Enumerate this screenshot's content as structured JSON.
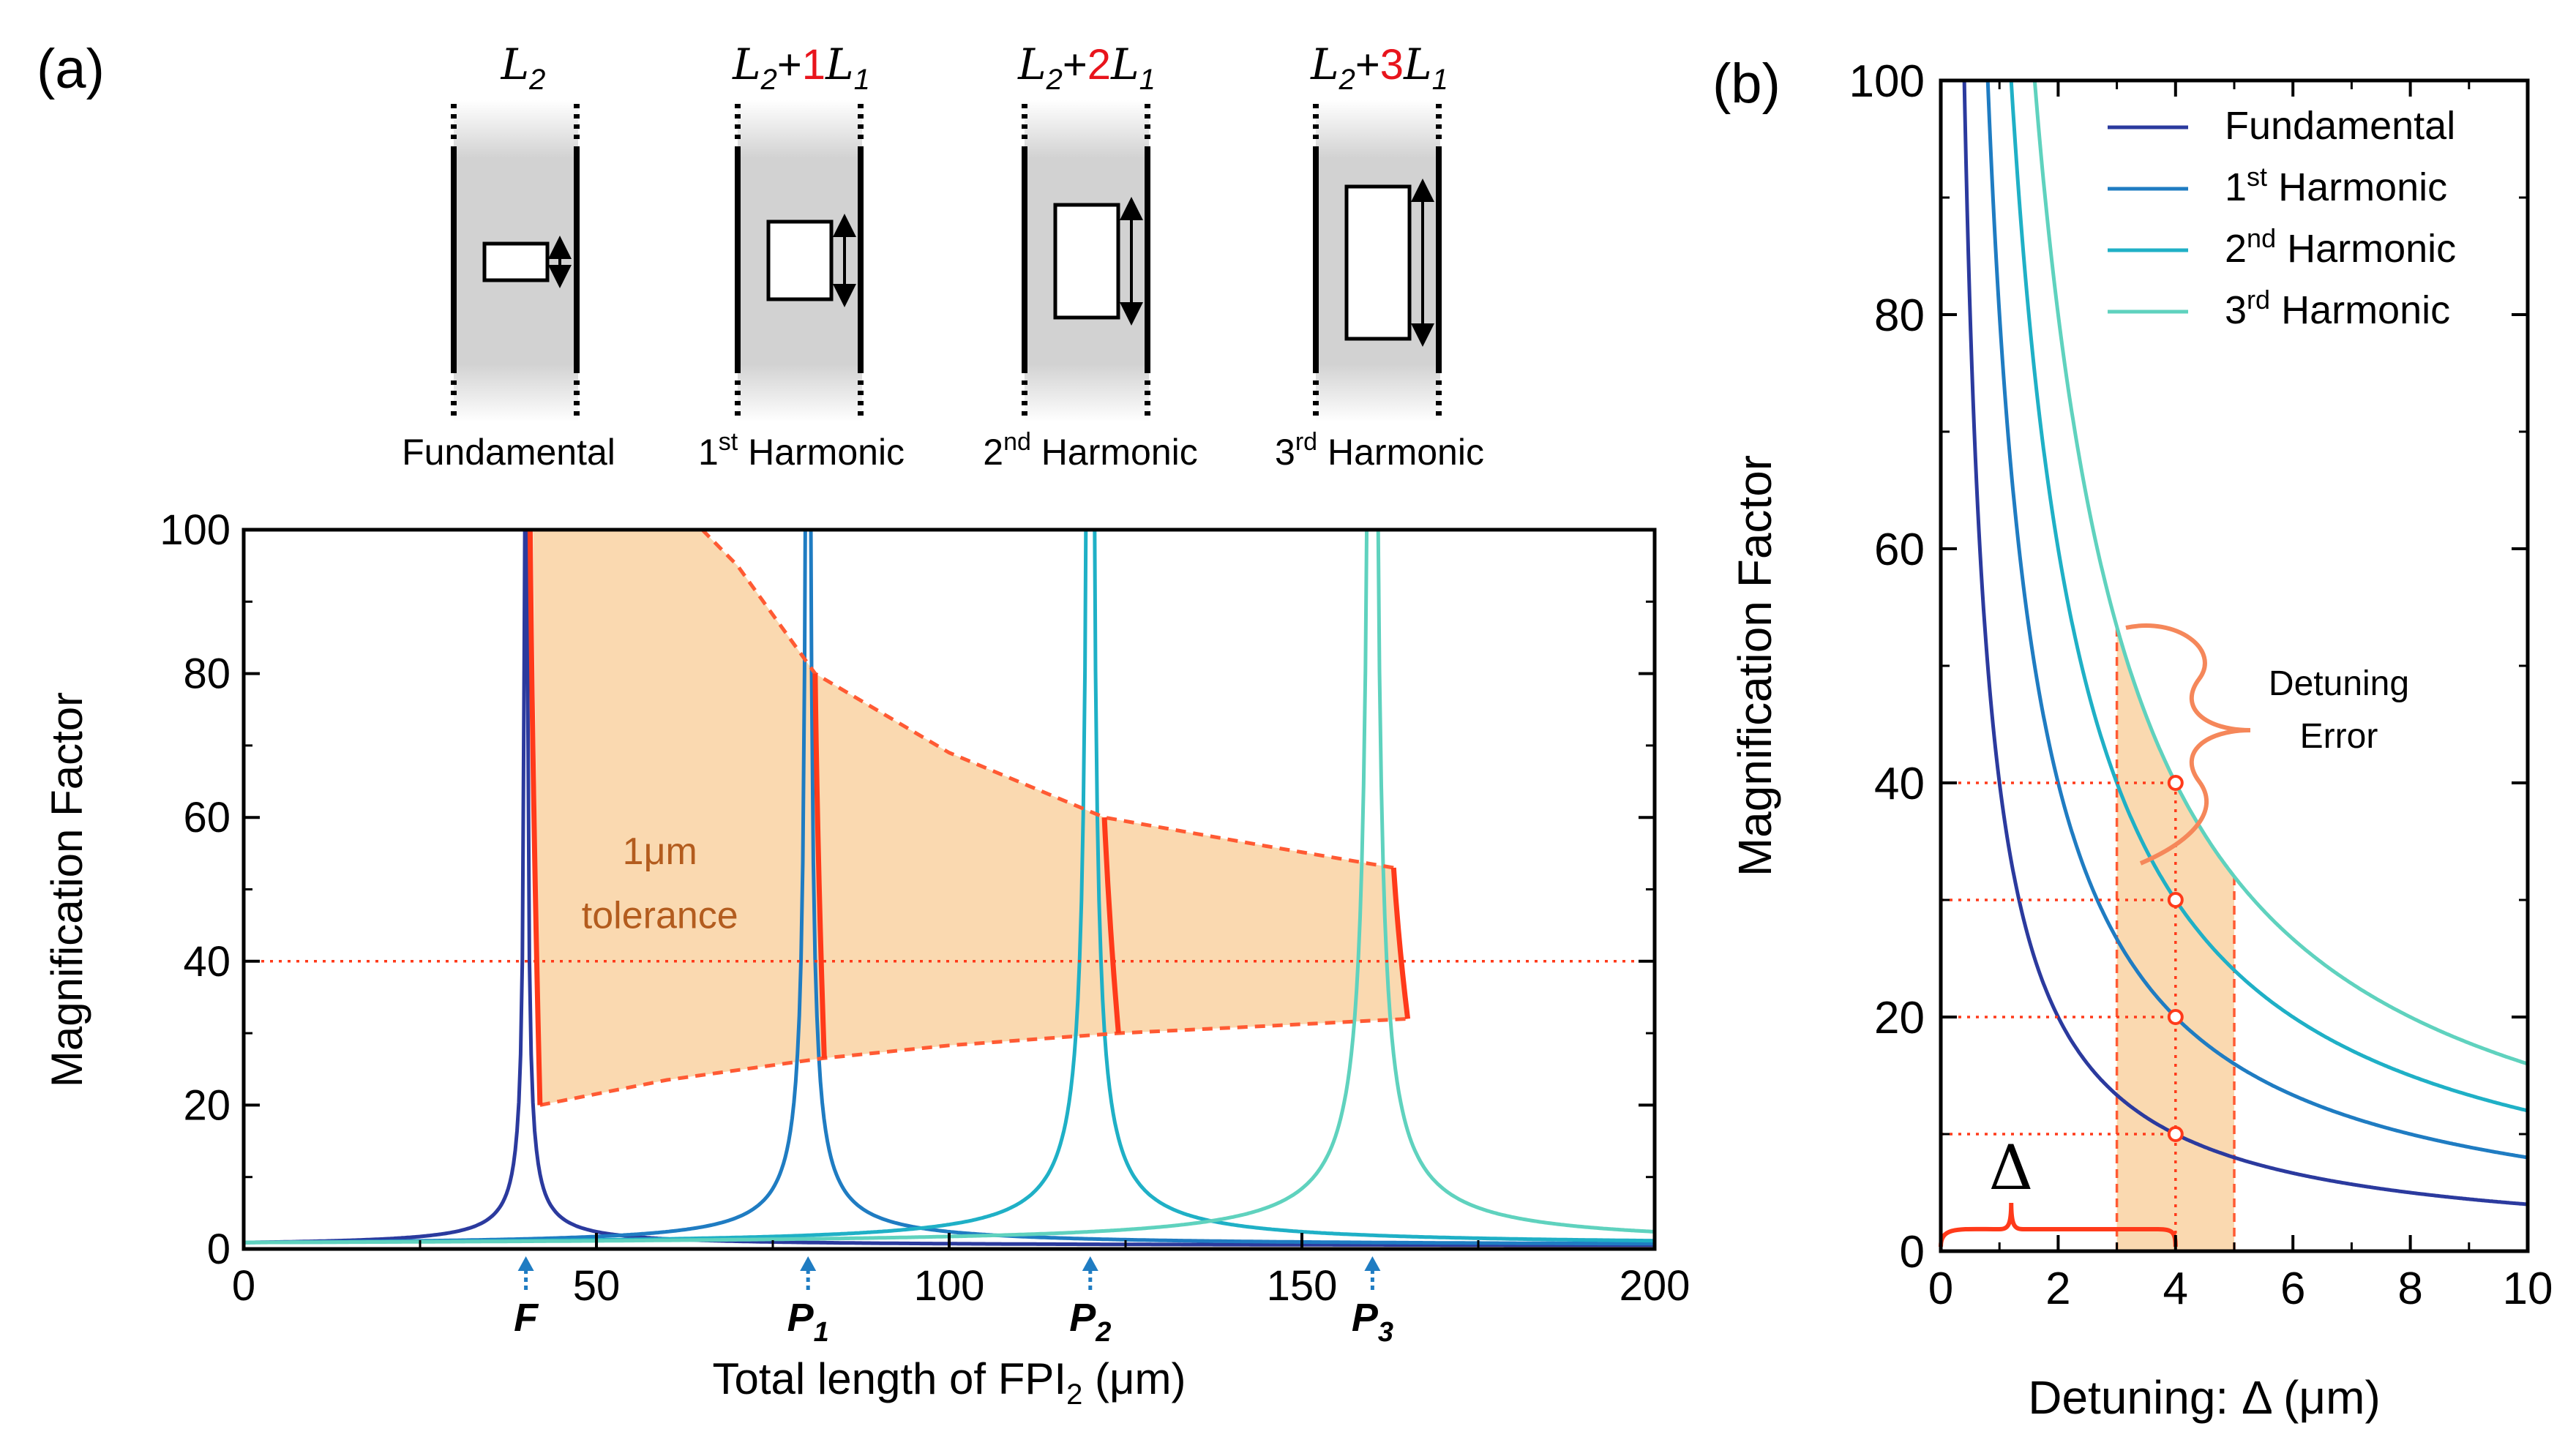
{
  "panel_labels": {
    "a": "(a)",
    "b": "(b)"
  },
  "schematics": [
    {
      "sym": "L",
      "sub": "2",
      "plus": "",
      "n": "",
      "sym2": "",
      "sub2": "",
      "caption": "Fundamental",
      "cap_num": "",
      "cap_sup": ""
    },
    {
      "sym": "L",
      "sub": "2",
      "plus": "+",
      "n": "1",
      "sym2": "L",
      "sub2": "1",
      "caption": "Harmonic",
      "cap_num": "1",
      "cap_sup": "st"
    },
    {
      "sym": "L",
      "sub": "2",
      "plus": "+",
      "n": "2",
      "sym2": "L",
      "sub2": "1",
      "caption": "Harmonic",
      "cap_num": "2",
      "cap_sup": "nd"
    },
    {
      "sym": "L",
      "sub": "2",
      "plus": "+",
      "n": "3",
      "sym2": "L",
      "sub2": "1",
      "caption": "Harmonic",
      "cap_num": "3",
      "cap_sup": "rd"
    }
  ],
  "colors": {
    "fundamental": "#2b3a9e",
    "harmonic1": "#1f7cc2",
    "harmonic2": "#1fb0c6",
    "harmonic3": "#5fd2be",
    "highlight": "#ff3a1a",
    "dashed": "#ff5a33",
    "fill": "#fad9b0",
    "brace": "#f5875a",
    "arrow": "#1f7cc2",
    "tolerance_text": "#b35c1e"
  },
  "chart_data": [
    {
      "id": "a",
      "type": "line",
      "xlabel": "Total length of FPI",
      "xlabel_sub": "2",
      "xlabel_unit": " (μm)",
      "ylabel": "Magnification Factor",
      "xlim": [
        0,
        200
      ],
      "ylim": [
        0,
        100
      ],
      "xticks": [
        "0",
        "50",
        "100",
        "150",
        "200"
      ],
      "yticks": [
        "0",
        "20",
        "40",
        "60",
        "80",
        "100"
      ],
      "peaks": [
        40,
        80,
        120,
        160
      ],
      "series": [
        {
          "name": "Fundamental",
          "center": 40,
          "color_key": "fundamental"
        },
        {
          "name": "1st Harmonic",
          "center": 80,
          "color_key": "harmonic1"
        },
        {
          "name": "2nd Harmonic",
          "center": 120,
          "color_key": "harmonic2"
        },
        {
          "name": "3rd Harmonic",
          "center": 160,
          "color_key": "harmonic3"
        }
      ],
      "tolerance_region": {
        "upper": [
          [
            41,
            100
          ],
          [
            65,
            100
          ],
          [
            81,
            80
          ],
          [
            122,
            60
          ],
          [
            163,
            53
          ]
        ],
        "lower": [
          [
            42,
            20
          ],
          [
            82,
            26.5
          ],
          [
            124,
            30
          ],
          [
            165,
            32
          ]
        ]
      },
      "reference_line_y": 40,
      "tolerance_label_line1": "1μm",
      "tolerance_label_line2": "tolerance",
      "peak_markers": [
        {
          "label": "F",
          "sub": "",
          "x": 40
        },
        {
          "label": "P",
          "sub": "1",
          "x": 80
        },
        {
          "label": "P",
          "sub": "2",
          "x": 120
        },
        {
          "label": "P",
          "sub": "3",
          "x": 160
        }
      ]
    },
    {
      "id": "b",
      "type": "line",
      "xlabel": "Detuning: Δ (μm)",
      "ylabel": "Magnification Factor",
      "xlim": [
        0,
        10
      ],
      "ylim": [
        0,
        100
      ],
      "xticks": [
        "0",
        "2",
        "4",
        "6",
        "8",
        "10"
      ],
      "yticks": [
        "0",
        "20",
        "40",
        "60",
        "80",
        "100"
      ],
      "series": [
        {
          "name": "Fundamental",
          "sup": "",
          "legend_rest": "Fundamental",
          "k": 40,
          "color_key": "fundamental"
        },
        {
          "name": "1st Harmonic",
          "sup": "st",
          "num": "1",
          "legend_rest": " Harmonic",
          "k": 80,
          "color_key": "harmonic1"
        },
        {
          "name": "2nd Harmonic",
          "sup": "nd",
          "num": "2",
          "legend_rest": " Harmonic",
          "k": 120,
          "color_key": "harmonic2"
        },
        {
          "name": "3rd Harmonic",
          "sup": "rd",
          "num": "3",
          "legend_rest": " Harmonic",
          "k": 160,
          "color_key": "harmonic3"
        }
      ],
      "legend_position": "top-right",
      "shaded_band": [
        3,
        5
      ],
      "marker_x": 4,
      "marker_values": [
        10,
        20,
        30,
        40
      ],
      "annotation_line1": "Detuning",
      "annotation_line2": "Error",
      "delta_label": "Δ"
    }
  ]
}
